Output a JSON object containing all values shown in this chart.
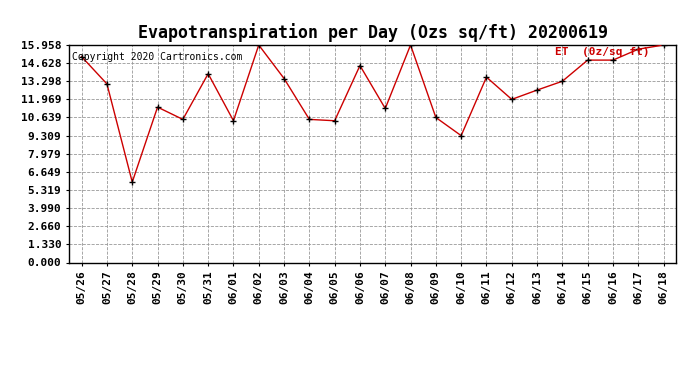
{
  "title": "Evapotranspiration per Day (Ozs sq/ft) 20200619",
  "copyright_text": "Copyright 2020 Cartronics.com",
  "legend_label": "ET  (0z/sq ft)",
  "dates": [
    "05/26",
    "05/27",
    "05/28",
    "05/29",
    "05/30",
    "05/31",
    "06/01",
    "06/02",
    "06/03",
    "06/04",
    "06/05",
    "06/06",
    "06/07",
    "06/08",
    "06/09",
    "06/10",
    "06/11",
    "06/12",
    "06/13",
    "06/14",
    "06/15",
    "06/16",
    "06/17",
    "06/18"
  ],
  "values": [
    15.1,
    13.1,
    5.9,
    11.4,
    10.5,
    13.85,
    10.4,
    15.958,
    13.5,
    10.5,
    10.4,
    14.45,
    11.3,
    15.958,
    10.639,
    9.309,
    13.6,
    11.969,
    12.65,
    13.298,
    14.85,
    14.85,
    15.65,
    15.958
  ],
  "yticks": [
    0.0,
    1.33,
    2.66,
    3.99,
    5.319,
    6.649,
    7.979,
    9.309,
    10.639,
    11.969,
    13.298,
    14.628,
    15.958
  ],
  "ylim": [
    0.0,
    15.958
  ],
  "line_color": "#cc0000",
  "marker_color": "#000000",
  "bg_color": "#ffffff",
  "grid_color": "#999999",
  "title_fontsize": 12,
  "tick_fontsize": 8,
  "copyright_fontsize": 7,
  "legend_fontsize": 8
}
